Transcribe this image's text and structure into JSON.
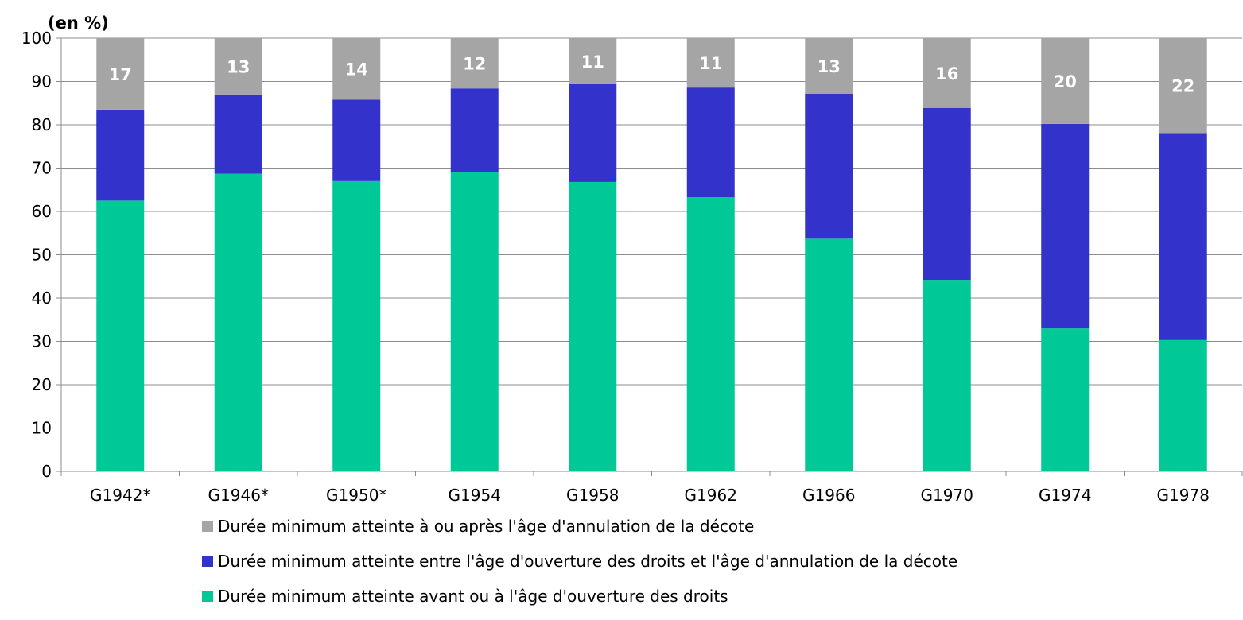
{
  "chart_data": {
    "type": "bar",
    "stacked": true,
    "unit_label": "(en %)",
    "title": "",
    "xlabel": "",
    "ylabel": "",
    "ylim": [
      0,
      100
    ],
    "yticks": [
      0,
      10,
      20,
      30,
      40,
      50,
      60,
      70,
      80,
      90,
      100
    ],
    "grid": "horizontal",
    "legend_position": "bottom",
    "categories": [
      "G1942*",
      "G1946*",
      "G1950*",
      "G1954",
      "G1958",
      "G1962",
      "G1966",
      "G1970",
      "G1974",
      "G1978"
    ],
    "series": [
      {
        "name": "Durée minimum atteinte avant ou à l'âge d'ouverture des droits",
        "color": "#00c896",
        "values": [
          62.5,
          68.7,
          67,
          69.1,
          66.8,
          63.3,
          53.7,
          44.2,
          33,
          30.3
        ]
      },
      {
        "name": "Durée minimum atteinte entre l'âge d'ouverture des droits et l'âge d'annulation de la décote",
        "color": "#3333cc",
        "values": [
          21,
          18.3,
          18.8,
          19.3,
          22.6,
          25.3,
          33.5,
          39.7,
          47.2,
          47.8
        ]
      },
      {
        "name": "Durée minimum atteinte à ou après l'âge d'annulation de la décote",
        "color": "#a5a5a5",
        "values": [
          16.5,
          13,
          14.2,
          11.6,
          10.6,
          11.4,
          12.8,
          16.1,
          19.8,
          21.9
        ],
        "data_labels": [
          "17",
          "13",
          "14",
          "12",
          "11",
          "11",
          "13",
          "16",
          "20",
          "22"
        ]
      }
    ],
    "legend_order": [
      2,
      1,
      0
    ]
  }
}
